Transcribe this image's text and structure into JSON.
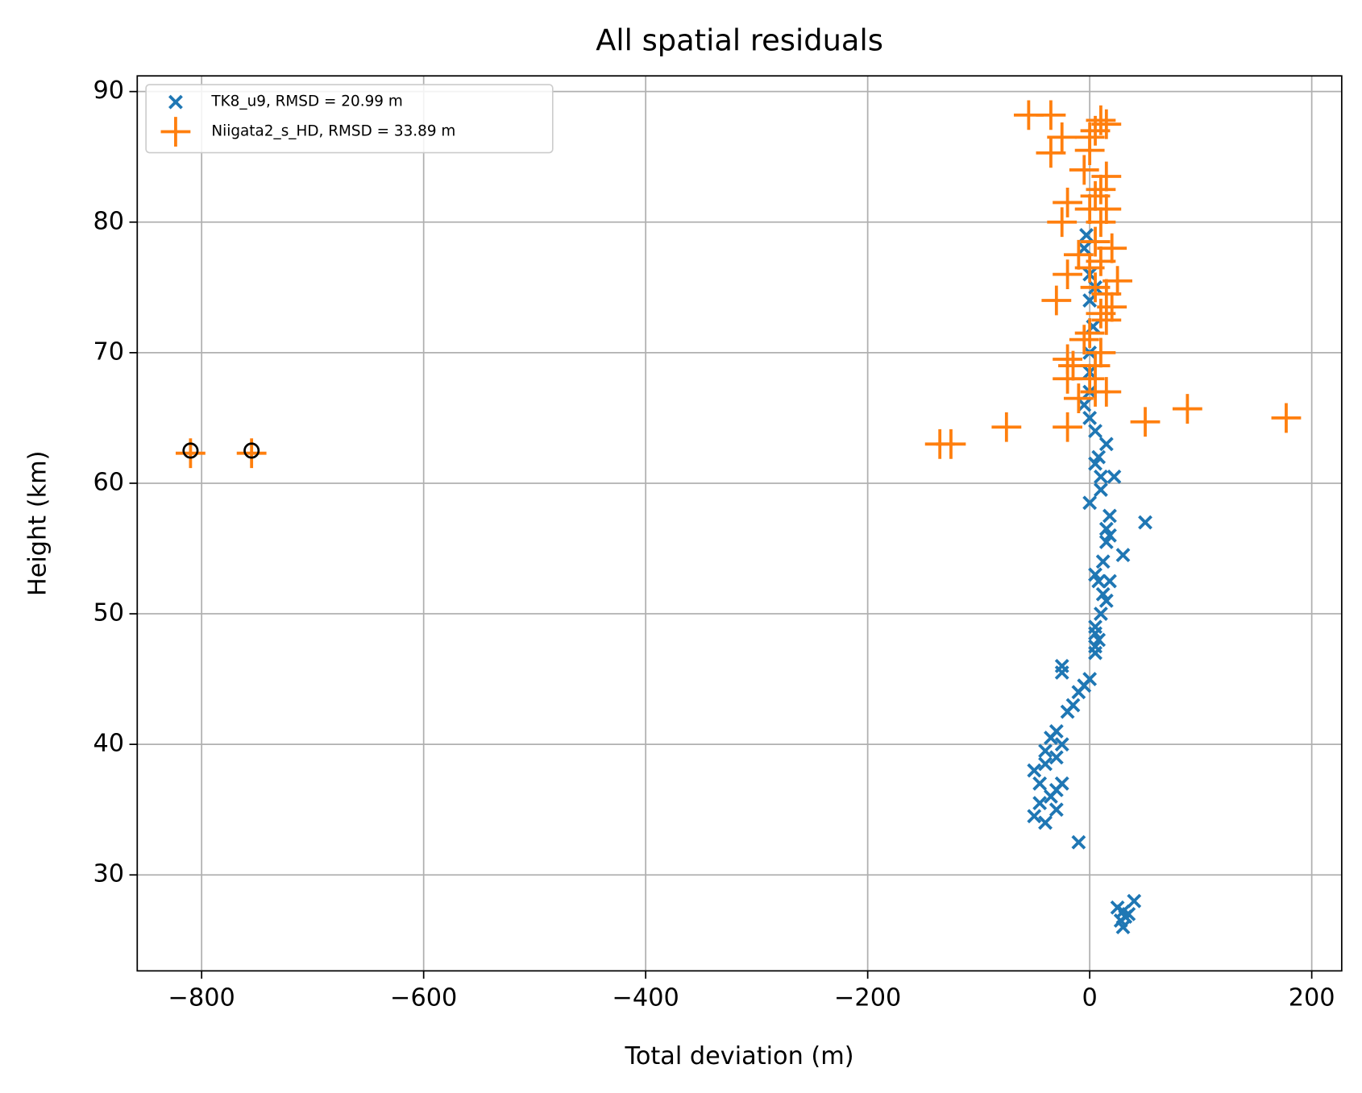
{
  "chart_data": {
    "type": "scatter",
    "title": "All spatial residuals",
    "x_label": "Total deviation (m)",
    "y_label": "Height (km)",
    "xlim": [
      -858,
      227
    ],
    "ylim": [
      22.65,
      91.2
    ],
    "xticks": [
      {
        "value": -800,
        "label": "−800"
      },
      {
        "value": -600,
        "label": "−600"
      },
      {
        "value": -400,
        "label": "−400"
      },
      {
        "value": -200,
        "label": "−200"
      },
      0,
      200
    ],
    "yticks": [
      30,
      40,
      50,
      60,
      70,
      80,
      90
    ],
    "grid": true,
    "legend": "upper left",
    "series": [
      {
        "name": "TK8_u9, RMSD = 20.99 m",
        "color": "#1f77b4",
        "marker": "x",
        "x": [
          30,
          28,
          35,
          25,
          40,
          30,
          32,
          -10,
          -40,
          -50,
          -30,
          -45,
          -35,
          -30,
          -45,
          -25,
          -50,
          -40,
          -30,
          -40,
          -25,
          -35,
          -30,
          -20,
          -15,
          -10,
          -5,
          0,
          -25,
          -25,
          5,
          5,
          8,
          5,
          5,
          10,
          15,
          12,
          18,
          8,
          5,
          12,
          30,
          15,
          18,
          15,
          50,
          18,
          0,
          10,
          22,
          10,
          5,
          8,
          15,
          5,
          0,
          -5,
          0,
          0,
          0,
          3,
          0,
          5,
          0,
          -5,
          -3
        ],
        "values": [
          26,
          26.5,
          27,
          27.5,
          28,
          27.2,
          26.8,
          32.5,
          34,
          34.5,
          35,
          35.5,
          36,
          36.5,
          37,
          37,
          38,
          38.5,
          39,
          39.5,
          40,
          40.5,
          41,
          42.5,
          43,
          44,
          44.5,
          45,
          45.5,
          46,
          47,
          47.5,
          48,
          48.5,
          49,
          50,
          51,
          51.5,
          52.5,
          52.5,
          53,
          54,
          54.5,
          55.5,
          56,
          56.5,
          57,
          57.5,
          58.5,
          59.5,
          60.5,
          60.5,
          61.5,
          62,
          63,
          64,
          65,
          66,
          67,
          68.5,
          70,
          72,
          74,
          75,
          76,
          78,
          79
        ]
      },
      {
        "name": "Niigata2_s_HD, RMSD = 33.89 m",
        "color": "#ff7f0e",
        "marker": "+",
        "x": [
          -810,
          -755,
          -135,
          -125,
          -75,
          -20,
          50,
          88,
          177,
          -10,
          5,
          15,
          -20,
          0,
          -15,
          5,
          -20,
          10,
          -5,
          0,
          15,
          10,
          20,
          -30,
          15,
          5,
          25,
          -20,
          0,
          10,
          -10,
          20,
          5,
          -25,
          10,
          0,
          15,
          -20,
          5,
          10,
          15,
          -5,
          -35,
          0,
          -25,
          0,
          5,
          15,
          -55,
          -35,
          10
        ],
        "values": [
          62.3,
          62.3,
          63,
          63,
          64.3,
          64.3,
          64.7,
          65.7,
          65,
          66.5,
          67,
          67,
          68,
          68,
          69,
          69,
          69.5,
          70,
          71,
          71.5,
          72.5,
          73,
          73.5,
          74,
          74.5,
          75,
          75.5,
          76,
          76.5,
          77,
          77.5,
          78,
          78.5,
          80,
          80,
          81,
          81,
          81.5,
          82,
          82.5,
          83.5,
          84,
          85.3,
          85.5,
          86.5,
          86.5,
          87,
          87.5,
          88.2,
          88.2,
          87.8
        ]
      },
      {
        "color": "#000000",
        "marker": "o",
        "x": [
          -810,
          -755
        ],
        "values": [
          62.5,
          62.5
        ]
      }
    ]
  }
}
